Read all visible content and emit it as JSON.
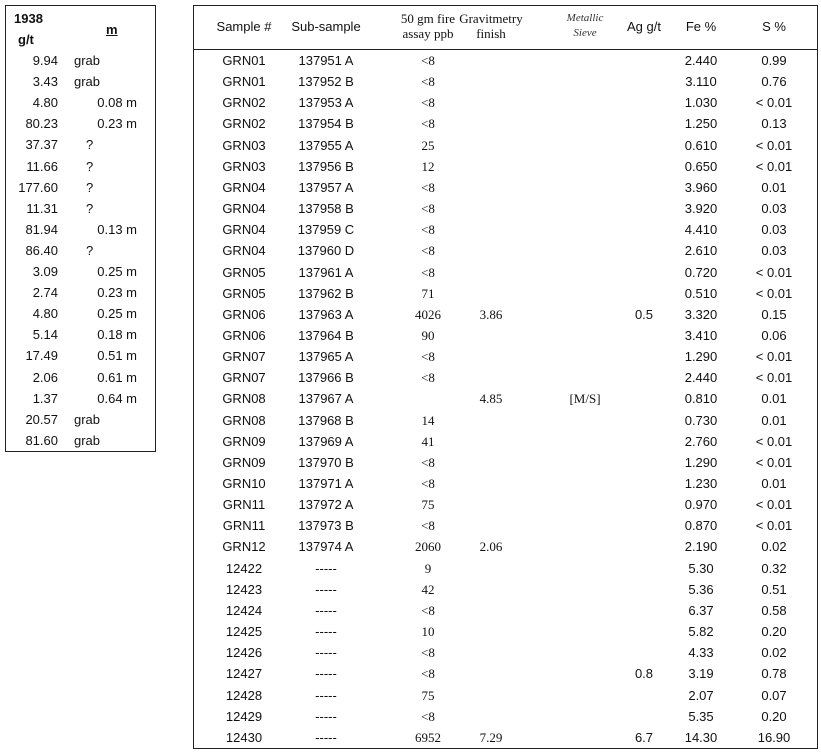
{
  "left_table": {
    "header": {
      "value_top": "1938",
      "value_unit": "g/t",
      "interval": "m"
    },
    "rows": [
      [
        "9.94",
        "grab"
      ],
      [
        "3.43",
        "grab"
      ],
      [
        "4.80",
        "0.08 m"
      ],
      [
        "80.23",
        "0.23 m"
      ],
      [
        "37.37",
        "?"
      ],
      [
        "11.66",
        "?"
      ],
      [
        "177.60",
        "?"
      ],
      [
        "11.31",
        "?"
      ],
      [
        "81.94",
        "0.13 m"
      ],
      [
        "86.40",
        "?"
      ],
      [
        "3.09",
        "0.25 m"
      ],
      [
        "2.74",
        "0.23 m"
      ],
      [
        "4.80",
        "0.25 m"
      ],
      [
        "5.14",
        "0.18 m"
      ],
      [
        "17.49",
        "0.51 m"
      ],
      [
        "2.06",
        "0.61 m"
      ],
      [
        "1.37",
        "0.64 m"
      ],
      [
        "20.57",
        "grab"
      ],
      [
        "81.60",
        "grab"
      ]
    ]
  },
  "right_table": {
    "headers": [
      "Sample #",
      "Sub-sample",
      "50 gm fire assay ppb",
      "Gravitmetry finish",
      "Metallic Sieve",
      "Ag g/t",
      "Fe %",
      "S %"
    ],
    "rows": [
      [
        "GRN01",
        "137951 A",
        "<8",
        null,
        null,
        null,
        "2.440",
        "0.99"
      ],
      [
        "GRN01",
        "137952 B",
        "<8",
        null,
        null,
        null,
        "3.110",
        "0.76"
      ],
      [
        "GRN02",
        "137953 A",
        "<8",
        null,
        null,
        null,
        "1.030",
        "< 0.01"
      ],
      [
        "GRN02",
        "137954 B",
        "<8",
        null,
        null,
        null,
        "1.250",
        "0.13"
      ],
      [
        "GRN03",
        "137955 A",
        "25",
        null,
        null,
        null,
        "0.610",
        "< 0.01"
      ],
      [
        "GRN03",
        "137956 B",
        "12",
        null,
        null,
        null,
        "0.650",
        "< 0.01"
      ],
      [
        "GRN04",
        "137957 A",
        "<8",
        null,
        null,
        null,
        "3.960",
        "0.01"
      ],
      [
        "GRN04",
        "137958 B",
        "<8",
        null,
        null,
        null,
        "3.920",
        "0.03"
      ],
      [
        "GRN04",
        "137959 C",
        "<8",
        null,
        null,
        null,
        "4.410",
        "0.03"
      ],
      [
        "GRN04",
        "137960 D",
        "<8",
        null,
        null,
        null,
        "2.610",
        "0.03"
      ],
      [
        "GRN05",
        "137961 A",
        "<8",
        null,
        null,
        null,
        "0.720",
        "< 0.01"
      ],
      [
        "GRN05",
        "137962 B",
        "71",
        null,
        null,
        null,
        "0.510",
        "< 0.01"
      ],
      [
        "GRN06",
        "137963 A",
        "4026",
        "3.86",
        null,
        "0.5",
        "3.320",
        "0.15"
      ],
      [
        "GRN06",
        "137964 B",
        "90",
        null,
        null,
        null,
        "3.410",
        "0.06"
      ],
      [
        "GRN07",
        "137965 A",
        "<8",
        null,
        null,
        null,
        "1.290",
        "< 0.01"
      ],
      [
        "GRN07",
        "137966 B",
        "<8",
        null,
        null,
        null,
        "2.440",
        "< 0.01"
      ],
      [
        "GRN08",
        "137967 A",
        null,
        "4.85",
        "[M/S]",
        null,
        "0.810",
        "0.01"
      ],
      [
        "GRN08",
        "137968 B",
        "14",
        null,
        null,
        null,
        "0.730",
        "0.01"
      ],
      [
        "GRN09",
        "137969 A",
        "41",
        null,
        null,
        null,
        "2.760",
        "< 0.01"
      ],
      [
        "GRN09",
        "137970 B",
        "<8",
        null,
        null,
        null,
        "1.290",
        "< 0.01"
      ],
      [
        "GRN10",
        "137971 A",
        "<8",
        null,
        null,
        null,
        "1.230",
        "0.01"
      ],
      [
        "GRN11",
        "137972 A",
        "75",
        null,
        null,
        null,
        "0.970",
        "< 0.01"
      ],
      [
        "GRN11",
        "137973 B",
        "<8",
        null,
        null,
        null,
        "0.870",
        "< 0.01"
      ],
      [
        "GRN12",
        "137974 A",
        "2060",
        "2.06",
        null,
        null,
        "2.190",
        "0.02"
      ],
      [
        "12422",
        "-----",
        "9",
        null,
        null,
        null,
        "5.30",
        "0.32"
      ],
      [
        "12423",
        "-----",
        "42",
        null,
        null,
        null,
        "5.36",
        "0.51"
      ],
      [
        "12424",
        "-----",
        "<8",
        null,
        null,
        null,
        "6.37",
        "0.58"
      ],
      [
        "12425",
        "-----",
        "10",
        null,
        null,
        null,
        "5.82",
        "0.20"
      ],
      [
        "12426",
        "-----",
        "<8",
        null,
        null,
        null,
        "4.33",
        "0.02"
      ],
      [
        "12427",
        "-----",
        "<8",
        null,
        null,
        "0.8",
        "3.19",
        "0.78"
      ],
      [
        "12428",
        "-----",
        "75",
        null,
        null,
        null,
        "2.07",
        "0.07"
      ],
      [
        "12429",
        "-----",
        "<8",
        null,
        null,
        null,
        "5.35",
        "0.20"
      ],
      [
        "12430",
        "-----",
        "6952",
        "7.29",
        null,
        "6.7",
        "14.30",
        "16.90"
      ]
    ]
  }
}
